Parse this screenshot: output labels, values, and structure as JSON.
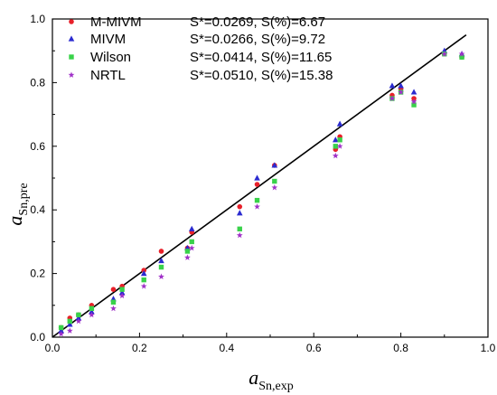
{
  "chart_data": {
    "type": "scatter",
    "xlabel": "a",
    "xlabel_sub": "Sn,exp",
    "ylabel": "a",
    "ylabel_sub": "Sn,pre",
    "xlim": [
      0.0,
      1.0
    ],
    "ylim": [
      0.0,
      1.0
    ],
    "x_ticks": [
      "0.0",
      "0.2",
      "0.4",
      "0.6",
      "0.8",
      "1.0"
    ],
    "y_ticks": [
      "0.0",
      "0.2",
      "0.4",
      "0.6",
      "0.8",
      "1.0"
    ],
    "grid": false,
    "legend_position": "top-left",
    "reference_line": {
      "x": [
        0.0,
        0.95
      ],
      "y": [
        0.0,
        0.95
      ],
      "color": "#000000"
    },
    "series": [
      {
        "name": "M-MIVM",
        "stat": "S*=0.0269, S(%)=6.67",
        "marker": "circle",
        "color": "#e8202a",
        "points": [
          [
            0.02,
            0.03
          ],
          [
            0.04,
            0.06
          ],
          [
            0.06,
            0.07
          ],
          [
            0.09,
            0.1
          ],
          [
            0.14,
            0.15
          ],
          [
            0.16,
            0.16
          ],
          [
            0.21,
            0.21
          ],
          [
            0.25,
            0.27
          ],
          [
            0.31,
            0.28
          ],
          [
            0.32,
            0.33
          ],
          [
            0.43,
            0.41
          ],
          [
            0.47,
            0.48
          ],
          [
            0.51,
            0.54
          ],
          [
            0.65,
            0.59
          ],
          [
            0.66,
            0.63
          ],
          [
            0.78,
            0.76
          ],
          [
            0.8,
            0.78
          ],
          [
            0.83,
            0.75
          ],
          [
            0.9,
            0.89
          ],
          [
            0.94,
            0.88
          ]
        ]
      },
      {
        "name": "MIVM",
        "stat": "S*=0.0266, S(%)=9.72",
        "marker": "triangle",
        "color": "#2b2bd0",
        "points": [
          [
            0.02,
            0.02
          ],
          [
            0.04,
            0.04
          ],
          [
            0.06,
            0.06
          ],
          [
            0.09,
            0.08
          ],
          [
            0.14,
            0.12
          ],
          [
            0.16,
            0.14
          ],
          [
            0.21,
            0.2
          ],
          [
            0.25,
            0.24
          ],
          [
            0.31,
            0.28
          ],
          [
            0.32,
            0.34
          ],
          [
            0.43,
            0.39
          ],
          [
            0.47,
            0.5
          ],
          [
            0.51,
            0.54
          ],
          [
            0.65,
            0.62
          ],
          [
            0.66,
            0.67
          ],
          [
            0.78,
            0.79
          ],
          [
            0.8,
            0.79
          ],
          [
            0.83,
            0.77
          ],
          [
            0.9,
            0.9
          ],
          [
            0.94,
            0.89
          ]
        ]
      },
      {
        "name": "Wilson",
        "stat": "S*=0.0414, S(%)=11.65",
        "marker": "square",
        "color": "#39d24a",
        "points": [
          [
            0.02,
            0.03
          ],
          [
            0.04,
            0.05
          ],
          [
            0.06,
            0.07
          ],
          [
            0.09,
            0.09
          ],
          [
            0.14,
            0.11
          ],
          [
            0.16,
            0.15
          ],
          [
            0.21,
            0.18
          ],
          [
            0.25,
            0.22
          ],
          [
            0.31,
            0.27
          ],
          [
            0.32,
            0.3
          ],
          [
            0.43,
            0.34
          ],
          [
            0.47,
            0.43
          ],
          [
            0.51,
            0.49
          ],
          [
            0.65,
            0.6
          ],
          [
            0.66,
            0.62
          ],
          [
            0.78,
            0.75
          ],
          [
            0.8,
            0.77
          ],
          [
            0.83,
            0.73
          ],
          [
            0.9,
            0.89
          ],
          [
            0.94,
            0.88
          ]
        ]
      },
      {
        "name": "NRTL",
        "stat": "S*=0.0510, S(%)=15.38",
        "marker": "star",
        "color": "#a031c8",
        "points": [
          [
            0.02,
            0.01
          ],
          [
            0.04,
            0.02
          ],
          [
            0.06,
            0.05
          ],
          [
            0.09,
            0.07
          ],
          [
            0.14,
            0.09
          ],
          [
            0.16,
            0.13
          ],
          [
            0.21,
            0.16
          ],
          [
            0.25,
            0.19
          ],
          [
            0.31,
            0.25
          ],
          [
            0.32,
            0.28
          ],
          [
            0.43,
            0.32
          ],
          [
            0.47,
            0.41
          ],
          [
            0.51,
            0.47
          ],
          [
            0.65,
            0.57
          ],
          [
            0.66,
            0.6
          ],
          [
            0.78,
            0.75
          ],
          [
            0.8,
            0.77
          ],
          [
            0.83,
            0.74
          ],
          [
            0.9,
            0.89
          ],
          [
            0.94,
            0.89
          ]
        ]
      }
    ]
  }
}
